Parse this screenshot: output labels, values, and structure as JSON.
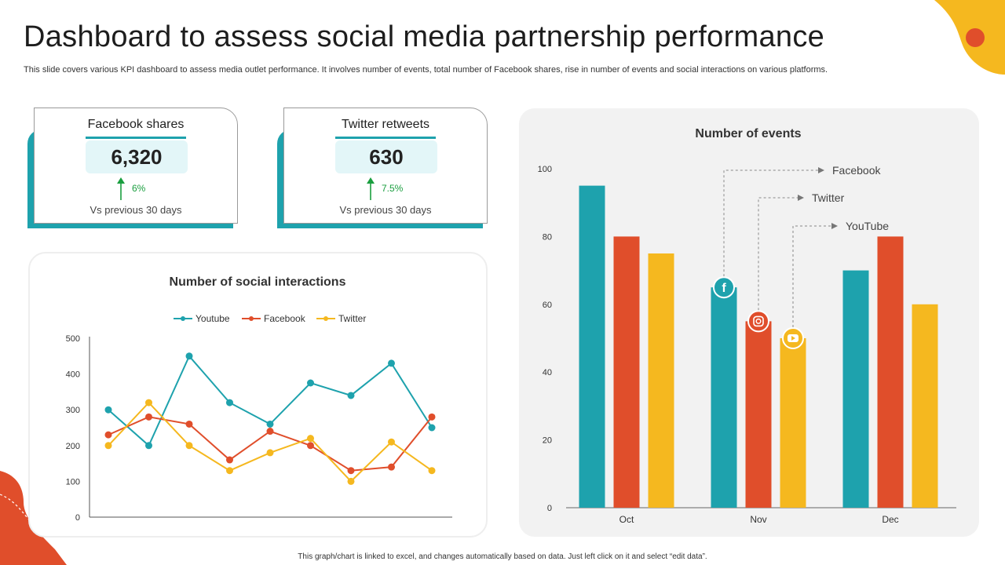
{
  "header": {
    "title": "Dashboard to assess social media partnership performance",
    "subtitle": "This slide covers various KPI dashboard to assess media outlet performance. It involves number of events, total number of  Facebook shares, rise in number of events and social interactions on various platforms."
  },
  "kpis": [
    {
      "label": "Facebook shares",
      "value": "6,320",
      "change": "6%",
      "compare": "Vs previous  30 days"
    },
    {
      "label": "Twitter retweets",
      "value": "630",
      "change": "7.5%",
      "compare": "Vs previous  30 days"
    }
  ],
  "footnote": "This graph/chart is linked to excel, and changes automatically based on data. Just left click on it and select “edit data”.",
  "colors": {
    "teal": "#1ea2ad",
    "red": "#e04e2b",
    "yellow": "#f5b81f",
    "up_green": "#1a9e3f"
  },
  "chart_data": [
    {
      "type": "line",
      "title": "Number of social interactions",
      "x": [
        1,
        2,
        3,
        4,
        5,
        6,
        7,
        8,
        9
      ],
      "series": [
        {
          "name": "Youtube",
          "color": "#1ea2ad",
          "values": [
            300,
            200,
            450,
            320,
            260,
            375,
            340,
            430,
            250
          ]
        },
        {
          "name": "Facebook",
          "color": "#e04e2b",
          "values": [
            230,
            280,
            260,
            160,
            240,
            200,
            130,
            140,
            280
          ]
        },
        {
          "name": "Twitter",
          "color": "#f5b81f",
          "values": [
            200,
            320,
            200,
            130,
            180,
            220,
            100,
            210,
            130
          ]
        }
      ],
      "ylim": [
        0,
        500
      ],
      "yticks": [
        0,
        100,
        200,
        300,
        400,
        500
      ],
      "legend": "top"
    },
    {
      "type": "bar",
      "title": "Number of events",
      "categories": [
        "Oct",
        "Nov",
        "Dec"
      ],
      "series": [
        {
          "name": "Facebook",
          "color": "#1ea2ad",
          "icon": "facebook-icon",
          "values": [
            95,
            65,
            70
          ]
        },
        {
          "name": "Twitter",
          "color": "#e04e2b",
          "icon": "instagram-icon",
          "values": [
            80,
            55,
            80
          ]
        },
        {
          "name": "YouTube",
          "color": "#f5b81f",
          "icon": "youtube-icon",
          "values": [
            75,
            50,
            60
          ]
        }
      ],
      "ylim": [
        0,
        100
      ],
      "yticks": [
        0,
        20,
        40,
        60,
        80,
        100
      ],
      "legend": "callouts on Nov bars"
    }
  ]
}
